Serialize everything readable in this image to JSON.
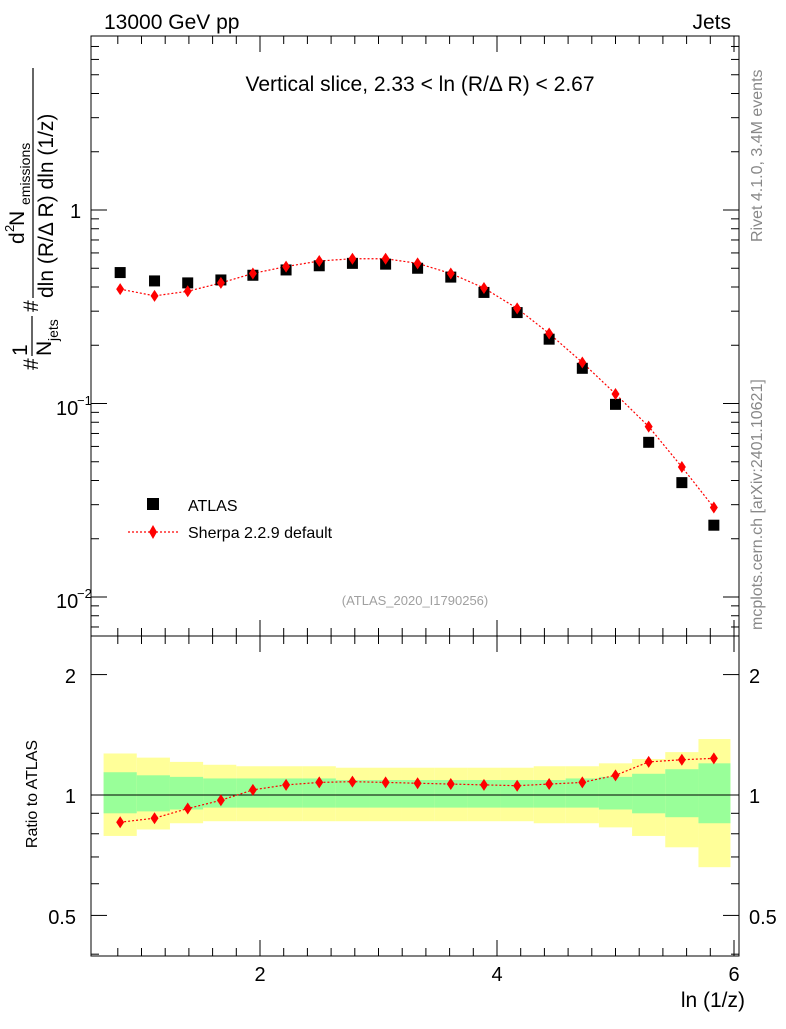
{
  "header": {
    "energy": "13000 GeV pp",
    "process": "Jets",
    "side_rivet": "Rivet 4.1.0,  3.4M events",
    "side_mcplots": "mcplots.cern.ch [arXiv:2401.10621]"
  },
  "colors": {
    "data": "#000000",
    "mc": "#ff0000",
    "band_outer": "#ffff99",
    "band_inner": "#99ff99"
  },
  "chart_data": [
    {
      "type": "scatter",
      "panel": "main",
      "title": "Vertical slice, 2.33 < ln (R/Δ R) < 2.67",
      "analysis_tag": "(ATLAS_2020_I1790256)",
      "xlabel": "ln (1/z)",
      "ylabel_parts": {
        "hash1": "#",
        "one": "1",
        "n_jets": "N",
        "jets_sub": "jets",
        "hash2": "#",
        "d2": "d",
        "d2_sup": "2",
        "n_em": " N",
        "em_sub": "emissions",
        "denom": "dln (R/Δ R) dln (1/z)"
      },
      "yscale": "log",
      "ylim": [
        0.0065,
        7.2
      ],
      "xlim": [
        0.65,
        6.05
      ],
      "yticks": [
        {
          "base": "10",
          "exp": "−2",
          "value": 0.01
        },
        {
          "base": "10",
          "exp": "−1",
          "value": 0.1
        },
        {
          "base": "1",
          "exp": "",
          "value": 1
        }
      ],
      "legend": {
        "position": "lower-left",
        "entries": [
          "ATLAS",
          "Sherpa 2.2.9 default"
        ]
      },
      "x": [
        0.82,
        1.11,
        1.39,
        1.67,
        1.94,
        2.22,
        2.5,
        2.78,
        3.06,
        3.33,
        3.61,
        3.89,
        4.17,
        4.44,
        4.72,
        5.0,
        5.28,
        5.56,
        5.83
      ],
      "series": [
        {
          "name": "ATLAS",
          "marker": "square",
          "values": [
            0.475,
            0.43,
            0.42,
            0.435,
            0.46,
            0.49,
            0.515,
            0.53,
            0.525,
            0.5,
            0.45,
            0.375,
            0.295,
            0.215,
            0.152,
            0.099,
            0.063,
            0.039,
            0.0235
          ]
        },
        {
          "name": "Sherpa 2.2.9 default",
          "marker": "diamond",
          "values": [
            0.39,
            0.36,
            0.38,
            0.42,
            0.47,
            0.51,
            0.545,
            0.56,
            0.56,
            0.53,
            0.47,
            0.395,
            0.31,
            0.23,
            0.163,
            0.112,
            0.076,
            0.047,
            0.029
          ]
        }
      ]
    },
    {
      "type": "scatter",
      "panel": "ratio",
      "ylabel": "Ratio to ATLAS",
      "xlabel": "ln (1/z)",
      "ylim": [
        0.35,
        2.3
      ],
      "xlim": [
        0.65,
        6.05
      ],
      "xticks": [
        {
          "label": "2",
          "value": 2
        },
        {
          "label": "4",
          "value": 4
        },
        {
          "label": "6",
          "value": 6
        }
      ],
      "yticks": [
        {
          "label": "0.5",
          "value": 0.5
        },
        {
          "label": "1",
          "value": 1
        },
        {
          "label": "2",
          "value": 2
        }
      ],
      "x_edges": [
        0.68,
        0.96,
        1.24,
        1.52,
        1.8,
        2.08,
        2.36,
        2.64,
        2.92,
        3.19,
        3.47,
        3.75,
        4.03,
        4.31,
        4.58,
        4.86,
        5.14,
        5.42,
        5.7,
        5.97
      ],
      "band_outer_low": [
        0.79,
        0.82,
        0.85,
        0.86,
        0.86,
        0.86,
        0.86,
        0.86,
        0.86,
        0.86,
        0.86,
        0.86,
        0.86,
        0.85,
        0.85,
        0.83,
        0.79,
        0.74,
        0.66
      ],
      "band_outer_high": [
        1.27,
        1.24,
        1.21,
        1.19,
        1.18,
        1.18,
        1.18,
        1.17,
        1.17,
        1.17,
        1.17,
        1.17,
        1.17,
        1.18,
        1.18,
        1.2,
        1.23,
        1.28,
        1.38
      ],
      "band_inner_low": [
        0.9,
        0.91,
        0.92,
        0.93,
        0.93,
        0.93,
        0.93,
        0.93,
        0.93,
        0.93,
        0.93,
        0.93,
        0.93,
        0.93,
        0.93,
        0.92,
        0.9,
        0.88,
        0.85
      ],
      "band_inner_high": [
        1.14,
        1.12,
        1.11,
        1.1,
        1.1,
        1.1,
        1.1,
        1.09,
        1.09,
        1.09,
        1.09,
        1.09,
        1.09,
        1.09,
        1.1,
        1.11,
        1.13,
        1.16,
        1.2
      ],
      "x": [
        0.82,
        1.11,
        1.39,
        1.67,
        1.94,
        2.22,
        2.5,
        2.78,
        3.06,
        3.33,
        3.61,
        3.89,
        4.17,
        4.44,
        4.72,
        5.0,
        5.28,
        5.56,
        5.83
      ],
      "series": [
        {
          "name": "Sherpa 2.2.9 default / ATLAS",
          "marker": "diamond",
          "values": [
            0.855,
            0.875,
            0.925,
            0.97,
            1.03,
            1.06,
            1.075,
            1.08,
            1.075,
            1.07,
            1.065,
            1.06,
            1.055,
            1.065,
            1.075,
            1.12,
            1.21,
            1.225,
            1.235
          ]
        }
      ]
    }
  ]
}
